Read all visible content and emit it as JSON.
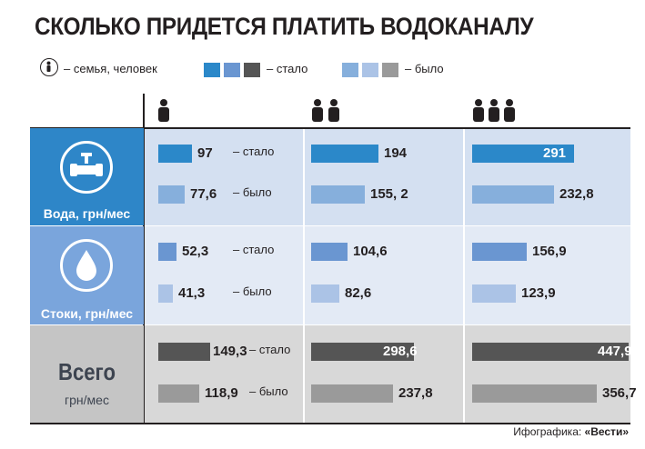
{
  "title": "СКОЛЬКО ПРИДЕТСЯ ПЛАТИТЬ ВОДОКАНАЛУ",
  "legend": {
    "family_label": "– семья, человек",
    "now_label": "– стало",
    "was_label": "– было"
  },
  "colors": {
    "water_now": "#2b88c9",
    "water_was": "#86afdc",
    "sewage_now": "#6a96d1",
    "sewage_was": "#abc3e6",
    "total_now": "#555555",
    "total_was": "#9a9a9a",
    "water_bg": "#d4e0f1",
    "sewage_bg": "#e3eaf5",
    "total_bg": "#d8d8d8",
    "water_cat": "#2e86c8",
    "sewage_cat": "#7aa5dc",
    "total_cat": "#c5c5c5"
  },
  "columns": [
    {
      "persons": 1,
      "icon": "one-person-icon"
    },
    {
      "persons": 2,
      "icon": "two-persons-icon"
    },
    {
      "persons": 3,
      "icon": "three-persons-icon"
    }
  ],
  "chart_data": {
    "type": "bar",
    "categories": [
      "1",
      "2",
      "3"
    ],
    "category_meaning": "семья, человек",
    "groups": [
      {
        "name": "Вода, грн/мес",
        "icon": "water-pipe-icon",
        "now": [
          97,
          194,
          291
        ],
        "was": [
          77.6,
          155.2,
          232.8
        ],
        "now_text": [
          "97",
          "194",
          "291"
        ],
        "was_text": [
          "77,6",
          "155, 2",
          "232,8"
        ]
      },
      {
        "name": "Стоки, грн/мес",
        "icon": "water-drop-icon",
        "now": [
          52.3,
          104.6,
          156.9
        ],
        "was": [
          41.3,
          82.6,
          123.9
        ],
        "now_text": [
          "52,3",
          "104,6",
          "156,9"
        ],
        "was_text": [
          "41,3",
          "82,6",
          "123,9"
        ]
      },
      {
        "name": "Всего",
        "name_sub": "грн/мес",
        "now": [
          149.3,
          298.6,
          447.9
        ],
        "was": [
          118.9,
          237.8,
          356.7
        ],
        "now_text": [
          "149,3",
          "298,6",
          "447,9"
        ],
        "was_text": [
          "118,9",
          "237,8",
          "356,7"
        ]
      }
    ],
    "row_labels": {
      "now": "– стало",
      "was": "– было"
    }
  },
  "credit": {
    "prefix": "Ифографика: ",
    "brand": "«Вести»"
  }
}
